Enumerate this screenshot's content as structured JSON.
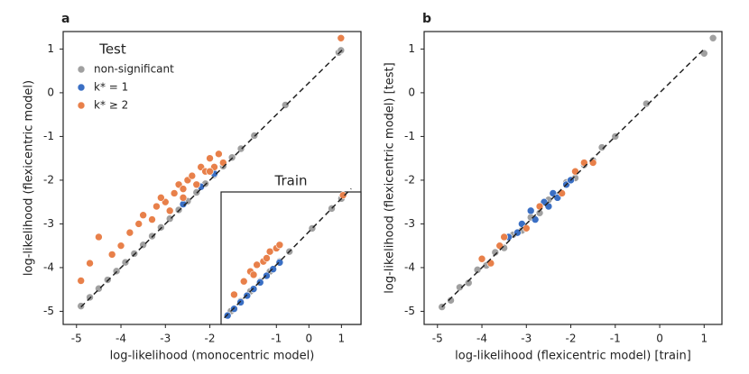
{
  "chart_data": [
    {
      "type": "scatter",
      "panel_label": "a",
      "xlabel": "log-likelihood (monocentric model)",
      "ylabel": "log-likelihood (flexicentric model)",
      "xlim": [
        -5.3,
        1.4
      ],
      "ylim": [
        -5.3,
        1.4
      ],
      "xticks": [
        -5,
        -4,
        -3,
        -2
      ],
      "yticks": [
        -5,
        -4,
        -3,
        -2,
        -1,
        0,
        1
      ],
      "legend": "upper left",
      "legend_title": "Test",
      "reference_line": {
        "x": [
          -4.9,
          1.0
        ],
        "y": [
          -4.9,
          1.0
        ]
      },
      "series": [
        {
          "name": "non-significant",
          "color": "#a0a0a0",
          "x": [
            -4.9,
            -4.7,
            -4.5,
            -4.3,
            -4.1,
            -3.9,
            -3.7,
            -3.5,
            -3.3,
            -3.1,
            -2.9,
            -2.7,
            -2.5,
            -2.3,
            -2.1,
            -1.9,
            -1.7,
            -1.5,
            -1.3,
            -1.0,
            -0.3,
            0.9,
            0.95
          ],
          "y": [
            -4.88,
            -4.68,
            -4.48,
            -4.28,
            -4.08,
            -3.88,
            -3.68,
            -3.48,
            -3.28,
            -3.08,
            -2.88,
            -2.68,
            -2.48,
            -2.28,
            -2.08,
            -1.88,
            -1.68,
            -1.48,
            -1.28,
            -0.98,
            -0.28,
            0.92,
            0.97
          ]
        },
        {
          "name": "k* = 1",
          "color": "#3a6fc4",
          "x": [
            -2.6,
            -2.2,
            -1.9
          ],
          "y": [
            -2.55,
            -2.15,
            -1.85
          ]
        },
        {
          "name": "k* ≥ 2",
          "color": "#e8804a",
          "x": [
            -4.9,
            -4.7,
            -4.5,
            -4.2,
            -4.0,
            -3.8,
            -3.6,
            -3.5,
            -3.3,
            -3.2,
            -3.0,
            -2.9,
            -2.8,
            -2.7,
            -2.6,
            -2.5,
            -2.4,
            -2.3,
            -2.2,
            -2.1,
            -2.0,
            -1.9,
            -1.8,
            -1.7,
            -3.1,
            -2.6,
            -2.0,
            0.95
          ],
          "y": [
            -4.3,
            -3.9,
            -3.3,
            -3.7,
            -3.5,
            -3.2,
            -3.0,
            -2.8,
            -2.9,
            -2.6,
            -2.5,
            -2.7,
            -2.3,
            -2.1,
            -2.4,
            -2.0,
            -1.9,
            -2.1,
            -1.7,
            -1.8,
            -1.5,
            -1.7,
            -1.4,
            -1.6,
            -2.4,
            -2.2,
            -1.8,
            1.25
          ]
        }
      ]
    },
    {
      "type": "scatter",
      "title": "Train",
      "xlim": [
        -2.7,
        1.6
      ],
      "ylim": [
        -2.8,
        1.2
      ],
      "xticks": [
        -1,
        0,
        1
      ],
      "reference_line": {
        "x": [
          -2.6,
          1.3
        ],
        "y": [
          -2.6,
          1.3
        ]
      },
      "series": [
        {
          "color": "#a0a0a0",
          "x": [
            -2.4,
            -2.1,
            -1.8,
            -1.5,
            -1.2,
            -0.9,
            -0.6,
            0.1,
            0.7,
            1.0
          ],
          "y": [
            -2.4,
            -2.1,
            -1.8,
            -1.5,
            -1.2,
            -0.9,
            -0.6,
            0.1,
            0.7,
            1.0
          ]
        },
        {
          "color": "#3a6fc4",
          "x": [
            -2.5,
            -2.3,
            -2.1,
            -1.9,
            -1.7,
            -1.5,
            -1.3,
            -1.1,
            -0.9
          ],
          "y": [
            -2.53,
            -2.33,
            -2.13,
            -1.93,
            -1.73,
            -1.53,
            -1.33,
            -1.13,
            -0.93
          ]
        },
        {
          "color": "#e8804a",
          "x": [
            -2.3,
            -2.0,
            -1.8,
            -1.6,
            -1.4,
            -1.2,
            -1.0,
            -0.9,
            -1.7,
            -1.3,
            1.05
          ],
          "y": [
            -1.9,
            -1.5,
            -1.2,
            -1.0,
            -0.9,
            -0.6,
            -0.5,
            -0.4,
            -1.3,
            -0.8,
            1.1
          ]
        }
      ]
    },
    {
      "type": "scatter",
      "panel_label": "b",
      "xlabel": "log-likelihood (flexicentric model) [train]",
      "ylabel": "log-likelihood (flexicentric model) [test]",
      "xlim": [
        -5.3,
        1.4
      ],
      "ylim": [
        -5.3,
        1.4
      ],
      "xticks": [
        -5,
        -4,
        -3,
        -2,
        -1,
        0,
        1
      ],
      "yticks": [
        -5,
        -4,
        -3,
        -2,
        -1,
        0,
        1
      ],
      "reference_line": {
        "x": [
          -4.9,
          1.0
        ],
        "y": [
          -4.9,
          1.0
        ]
      },
      "series": [
        {
          "color": "#a0a0a0",
          "x": [
            -4.9,
            -4.7,
            -4.5,
            -4.3,
            -4.1,
            -3.9,
            -3.7,
            -3.5,
            -3.3,
            -3.1,
            -2.9,
            -2.7,
            -2.5,
            -2.3,
            -2.1,
            -1.9,
            -1.7,
            -1.5,
            -1.3,
            -1.0,
            -0.3,
            1.0,
            1.2
          ],
          "y": [
            -4.9,
            -4.75,
            -4.45,
            -4.35,
            -4.05,
            -3.95,
            -3.65,
            -3.55,
            -3.25,
            -3.15,
            -2.85,
            -2.75,
            -2.45,
            -2.35,
            -2.05,
            -1.95,
            -1.65,
            -1.55,
            -1.25,
            -1.0,
            -0.25,
            0.9,
            1.25
          ]
        },
        {
          "color": "#3a6fc4",
          "x": [
            -3.4,
            -3.2,
            -3.1,
            -2.9,
            -2.8,
            -2.6,
            -2.5,
            -2.4,
            -2.3,
            -2.1,
            -2.0
          ],
          "y": [
            -3.3,
            -3.2,
            -3.0,
            -2.7,
            -2.9,
            -2.5,
            -2.6,
            -2.3,
            -2.4,
            -2.1,
            -2.0
          ]
        },
        {
          "color": "#e8804a",
          "x": [
            -4.0,
            -3.8,
            -3.6,
            -3.5,
            -3.0,
            -2.7,
            -2.2,
            -1.9,
            -1.7,
            -1.5
          ],
          "y": [
            -3.8,
            -3.9,
            -3.5,
            -3.3,
            -3.1,
            -2.6,
            -2.3,
            -1.8,
            -1.6,
            -1.6
          ]
        }
      ]
    }
  ]
}
